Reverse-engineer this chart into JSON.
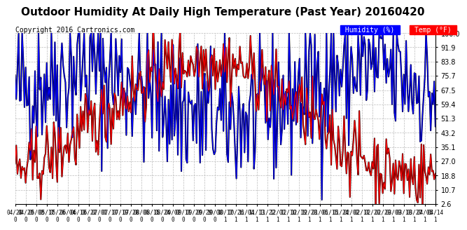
{
  "title": "Outdoor Humidity At Daily High Temperature (Past Year) 20160420",
  "copyright": "Copyright 2016 Cartronics.com",
  "legend_humidity_label": "Humidity (%)",
  "legend_temp_label": "Temp (°F)",
  "legend_humidity_bg": "#0000FF",
  "legend_temp_bg": "#FF0000",
  "line_humidity_color": "#0000FF",
  "line_temp_color": "#FF0000",
  "line_black_color": "#000000",
  "yticks": [
    2.6,
    10.7,
    18.8,
    27.0,
    35.1,
    43.2,
    51.3,
    59.4,
    67.5,
    75.7,
    83.8,
    91.9,
    100.0
  ],
  "ylim": [
    2.6,
    100.0
  ],
  "background_color": "#FFFFFF",
  "grid_color": "#BBBBBB",
  "title_fontsize": 11,
  "copyright_fontsize": 7,
  "tick_fontsize": 7,
  "xtick_labels": [
    "04/20\n0",
    "04/29\n0",
    "05/08\n0",
    "05/17\n0",
    "05/26\n0",
    "06/04\n0",
    "06/13\n0",
    "06/22\n0",
    "07/01\n0",
    "07/10\n0",
    "07/19\n0",
    "07/28\n0",
    "08/06\n0",
    "08/15\n0",
    "08/24\n0",
    "09/02\n0",
    "09/11\n0",
    "09/20\n0",
    "09/29\n0",
    "10/08\n0",
    "10/17\n1",
    "10/26\n1",
    "11/04\n1",
    "11/13\n1",
    "11/22\n1",
    "12/01\n1",
    "12/10\n1",
    "12/19\n1",
    "12/28\n1",
    "01/06\n1",
    "01/15\n1",
    "01/24\n1",
    "02/02\n1",
    "02/11\n1",
    "02/20\n1",
    "02/29\n1",
    "03/09\n1",
    "03/18\n1",
    "03/27\n1",
    "04/05\n1",
    "04/14\n1"
  ],
  "num_points": 360,
  "seed": 42
}
